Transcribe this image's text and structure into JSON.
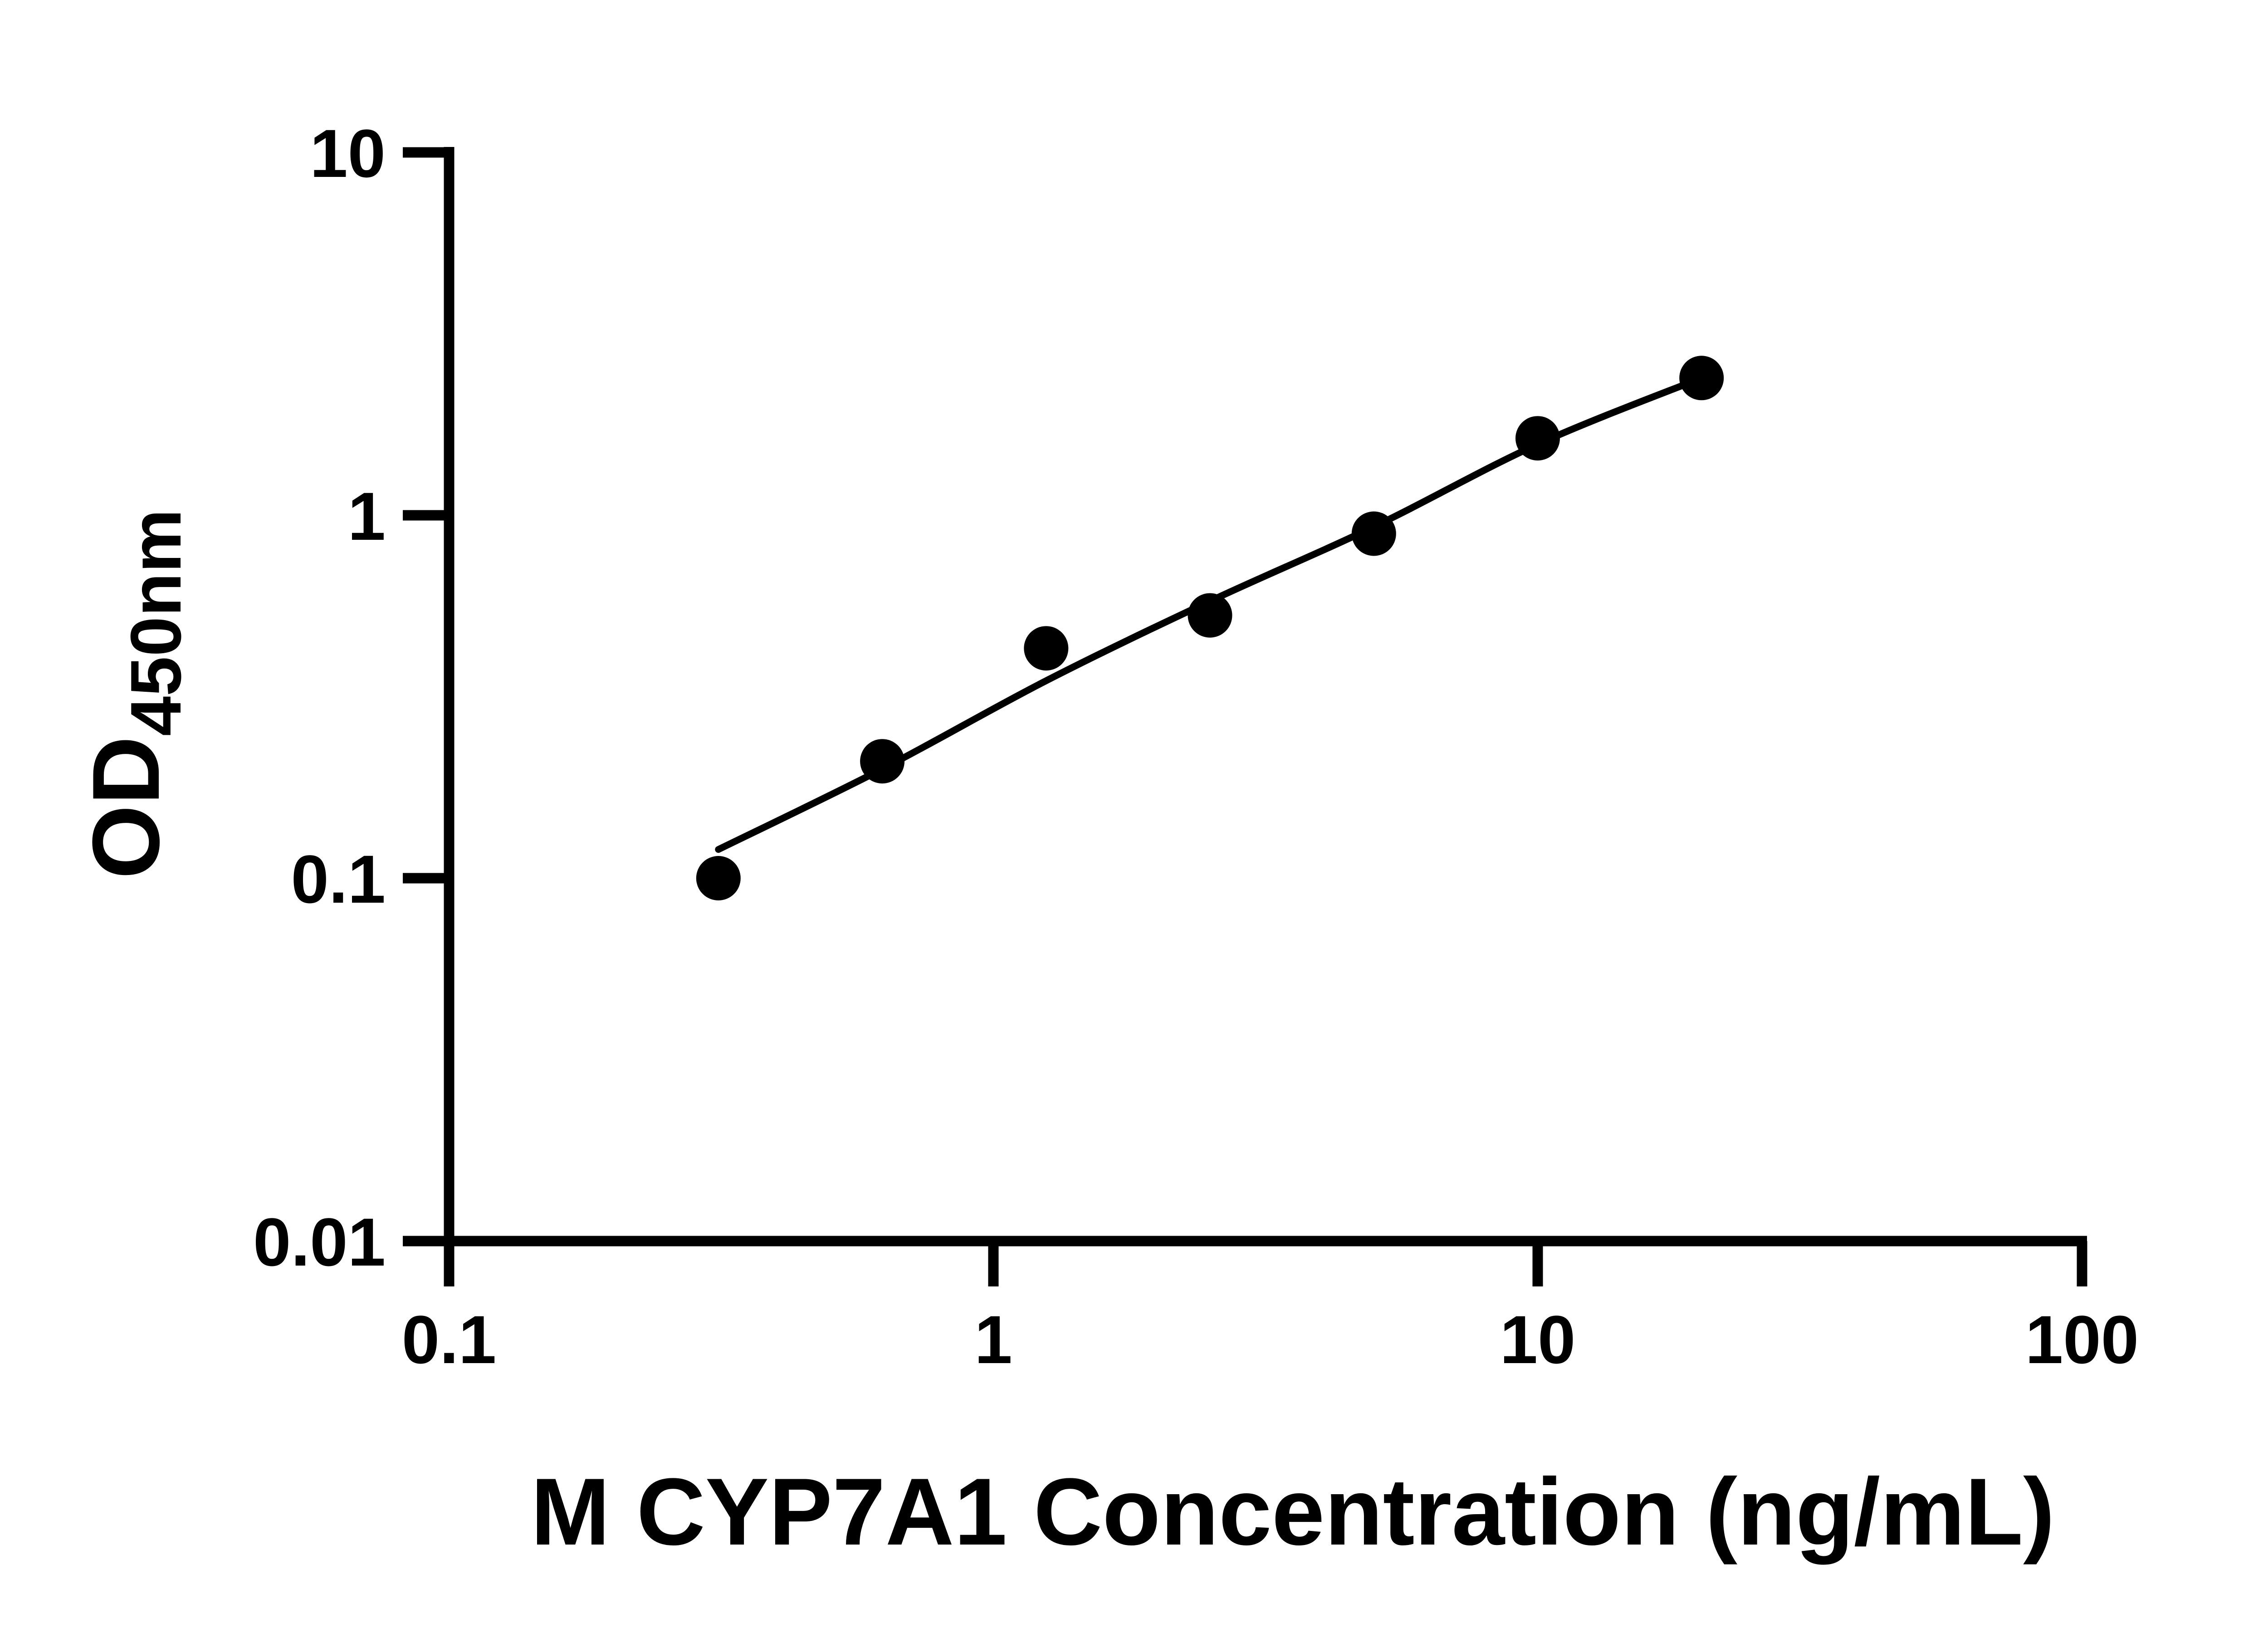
{
  "page": {
    "background": "#ffffff"
  },
  "chart_data": {
    "type": "scatter",
    "title": "",
    "xlabel": "M CYP7A1 Concentration (ng/mL)",
    "ylabel": {
      "main": "OD",
      "subscript": "450nm"
    },
    "x_scale": "log",
    "y_scale": "log",
    "xlim": [
      0.1,
      100
    ],
    "ylim": [
      0.01,
      10
    ],
    "x_tick_values": [
      0.1,
      1,
      10,
      100
    ],
    "x_tick_labels": [
      "0.1",
      "1",
      "10",
      "100"
    ],
    "y_tick_values": [
      10,
      1,
      0.1,
      0.01
    ],
    "y_tick_labels": [
      "10",
      "1",
      "0.1",
      "0.01"
    ],
    "grid": false,
    "legend": false,
    "colors": {
      "axis": "#000000",
      "marker": "#000000",
      "line": "#000000",
      "background": "#ffffff"
    },
    "points": [
      {
        "concentration": 0.3125,
        "od": 0.1
      },
      {
        "concentration": 0.625,
        "od": 0.21
      },
      {
        "concentration": 1.25,
        "od": 0.43
      },
      {
        "concentration": 2.5,
        "od": 0.53
      },
      {
        "concentration": 5,
        "od": 0.89
      },
      {
        "concentration": 10,
        "od": 1.63
      },
      {
        "concentration": 20,
        "od": 2.39
      }
    ],
    "fit_curve": {
      "x": [
        0.3125,
        0.625,
        1.25,
        2.5,
        5,
        10,
        20
      ],
      "od": [
        0.12,
        0.2,
        0.35,
        0.58,
        0.93,
        1.57,
        2.39
      ]
    }
  }
}
